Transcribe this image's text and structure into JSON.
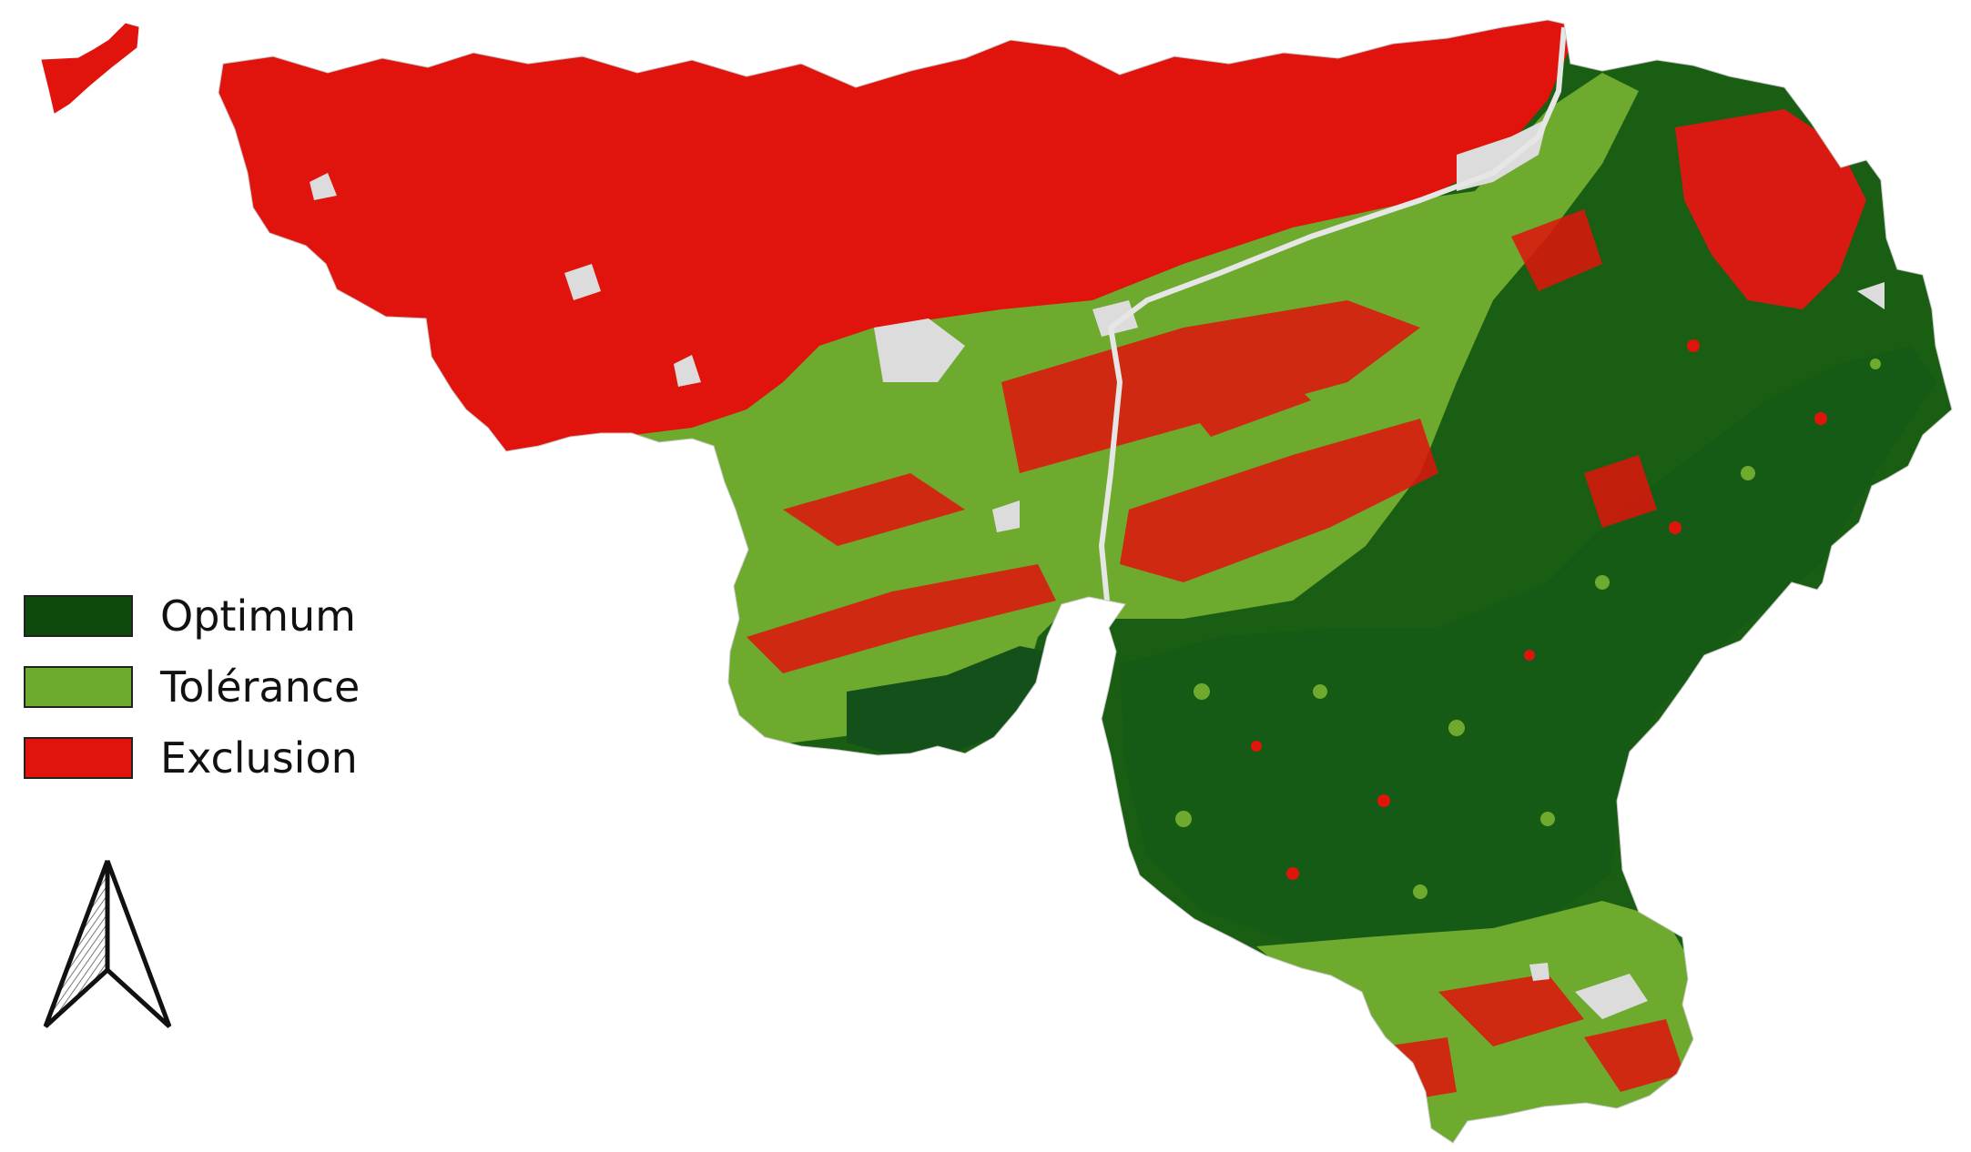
{
  "colors": {
    "optimum": "#0e4a0e",
    "optimum_mid": "#1f6a17",
    "tolerance": "#6eaa2e",
    "exclusion": "#e0140c",
    "nodata": "#dcdcdc",
    "background": "#ffffff"
  },
  "legend": {
    "items": [
      {
        "label": "Optimum",
        "color": "#0e4a0e"
      },
      {
        "label": "Tolérance",
        "color": "#6eaa2e"
      },
      {
        "label": "Exclusion",
        "color": "#e0140c"
      }
    ]
  },
  "north_arrow": {
    "icon": "north-arrow-icon"
  }
}
